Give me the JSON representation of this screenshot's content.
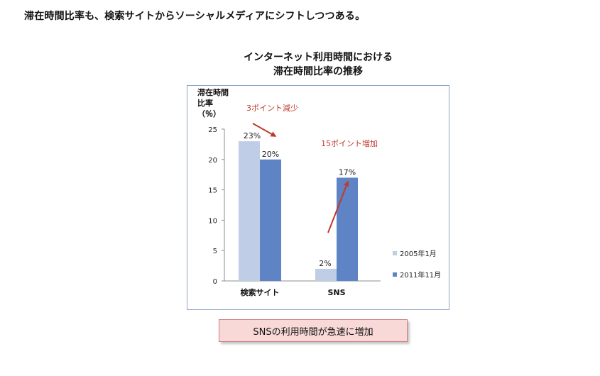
{
  "page": {
    "headline": "滞在時間比率も、検索サイトからソーシャルメディアにシフトしつつある。",
    "callout": "SNSの利用時間が急速に増加"
  },
  "chart_data": {
    "type": "bar",
    "title_lines": [
      "インターネット利用時間における",
      "滞在時間比率の推移"
    ],
    "ylabel_lines": [
      "滞在時間",
      "比率",
      "（％）"
    ],
    "categories": [
      "検索サイト",
      "SNS"
    ],
    "series": [
      {
        "name": "2005年1月",
        "values": [
          23,
          2
        ],
        "labels": [
          "23%",
          "2%"
        ],
        "color": "#bfcde6"
      },
      {
        "name": "2011年11月",
        "values": [
          20,
          17
        ],
        "labels": [
          "20%",
          "17%"
        ],
        "color": "#5f84c6"
      }
    ],
    "ylim": [
      0,
      25
    ],
    "yticks": [
      "0",
      "5",
      "10",
      "15",
      "20",
      "25"
    ],
    "grid": false,
    "legend": "bottom-right",
    "annotations": [
      {
        "text": "3ポイント減少",
        "color": "#c0392b"
      },
      {
        "text": "15ポイント増加",
        "color": "#c0392b"
      }
    ],
    "annotation_arrow_color": "#c0392b"
  }
}
